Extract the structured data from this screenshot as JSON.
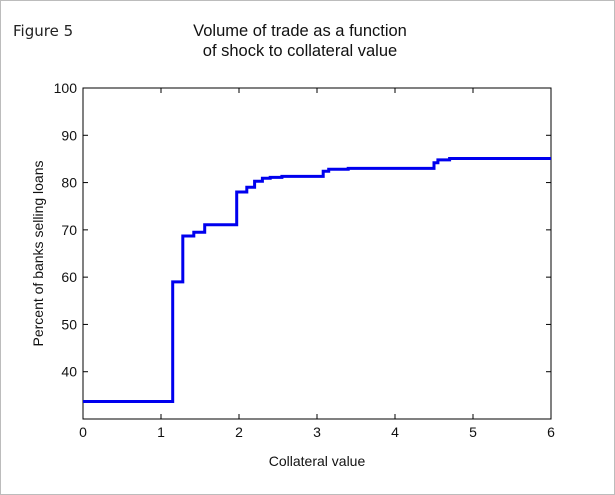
{
  "figure": {
    "label": "Figure 5"
  },
  "chart_data": {
    "type": "line",
    "title_line1": "Volume of trade as a function",
    "title_line2": "of shock to collateral value",
    "xlabel": "Collateral value",
    "ylabel": "Percent of banks selling loans",
    "xlim": [
      0,
      6
    ],
    "ylim": [
      30,
      100
    ],
    "xticks": [
      0,
      1,
      2,
      3,
      4,
      5,
      6
    ],
    "yticks": [
      40,
      50,
      60,
      70,
      80,
      90,
      100
    ],
    "grid": false,
    "legend": "none",
    "color": "#0000ee",
    "step": true,
    "series": [
      {
        "x": [
          0,
          1.15,
          1.15,
          1.28,
          1.28,
          1.42,
          1.42,
          1.56,
          1.56,
          1.97,
          1.97,
          2.1,
          2.1,
          2.2,
          2.2,
          2.3,
          2.3,
          2.4,
          2.4,
          2.55,
          2.55,
          3.08,
          3.08,
          3.15,
          3.15,
          3.4,
          3.4,
          4.5,
          4.5,
          4.55,
          4.55,
          4.7,
          4.7,
          6.0
        ],
        "y": [
          33.7,
          33.7,
          59,
          59,
          68.7,
          68.7,
          69.5,
          69.5,
          71.1,
          71.1,
          78,
          78,
          79,
          79,
          80.3,
          80.3,
          80.9,
          80.9,
          81.1,
          81.1,
          81.3,
          81.3,
          82.4,
          82.4,
          82.8,
          82.8,
          83,
          83,
          84.2,
          84.2,
          84.8,
          84.8,
          85.1,
          85.1
        ]
      }
    ]
  }
}
